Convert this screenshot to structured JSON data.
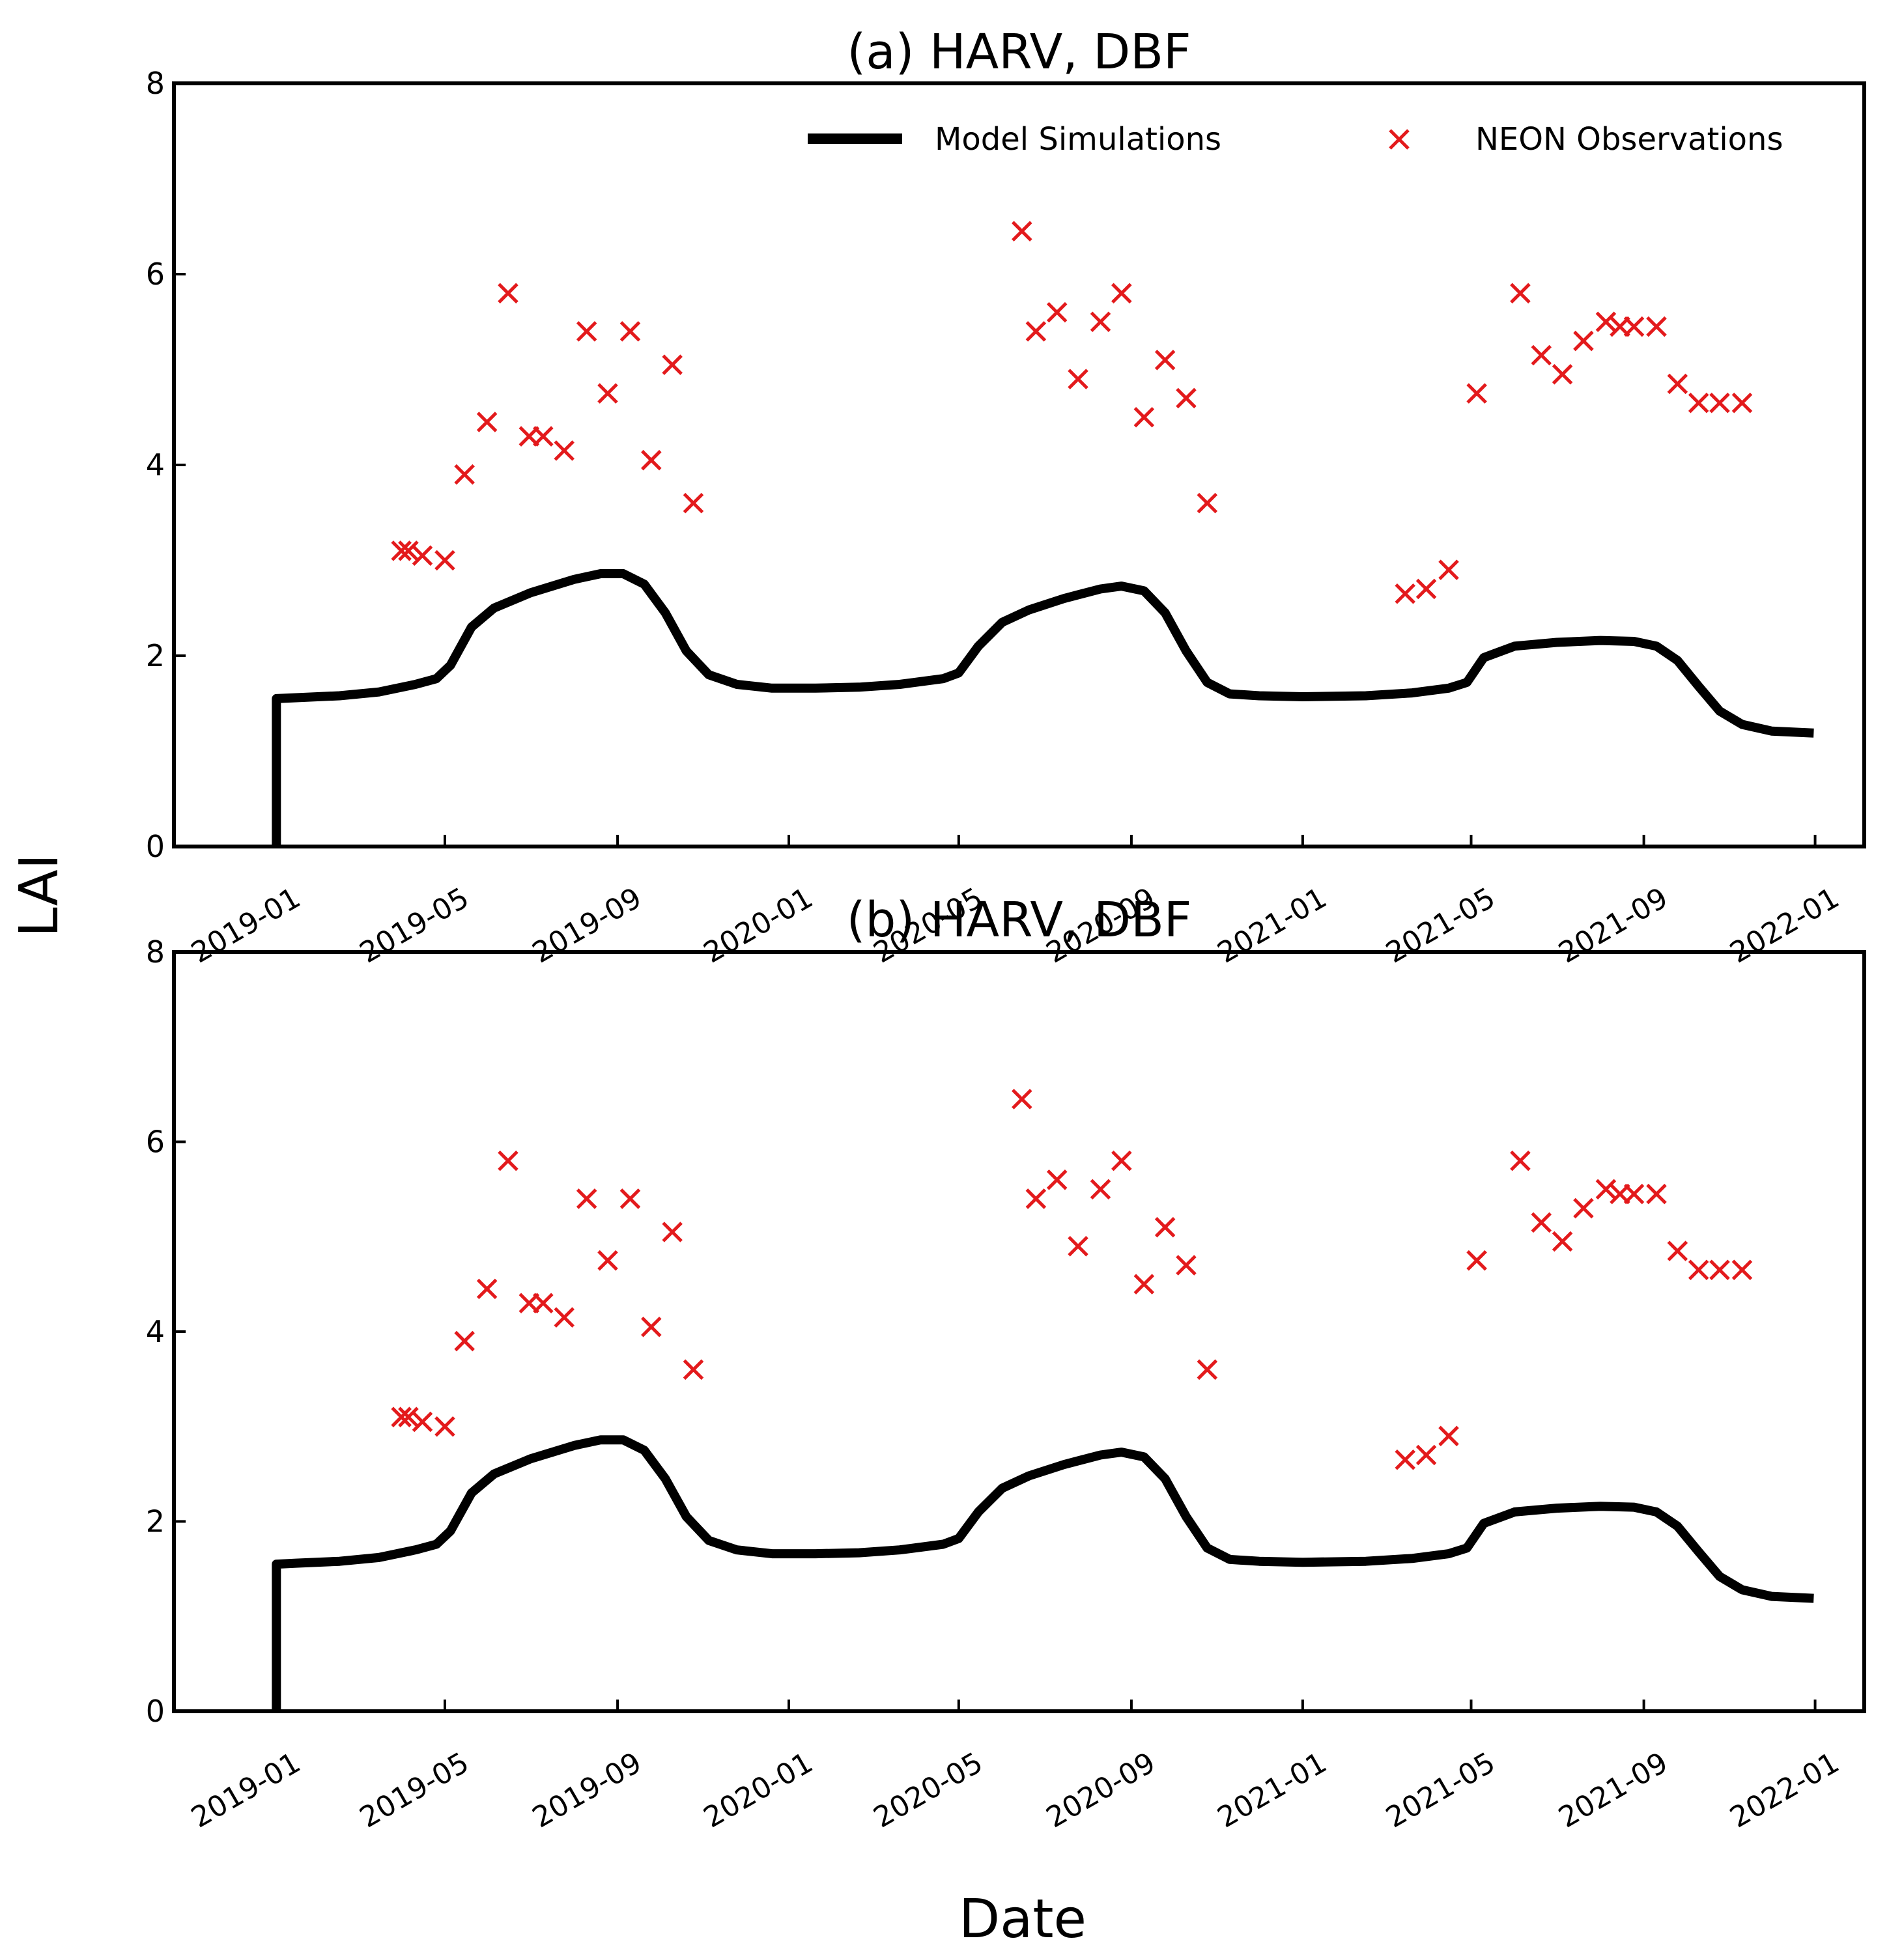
{
  "figure": {
    "ylabel": "LAI",
    "xlabel": "Date"
  },
  "chart_data": [
    {
      "type": "line",
      "title": "(a) HARV, DBF",
      "xlabel": "Date",
      "ylabel": "LAI",
      "ylim": [
        0,
        8
      ],
      "yticks": [
        0,
        2,
        4,
        6,
        8
      ],
      "xlim": [
        "2018-10-20",
        "2022-02-05"
      ],
      "xticks": [
        "2019-01",
        "2019-05",
        "2019-09",
        "2020-01",
        "2020-05",
        "2020-09",
        "2021-01",
        "2021-05",
        "2021-09",
        "2022-01"
      ],
      "grid": false,
      "legend_position": "top-right",
      "series": [
        {
          "name": "Model Simulations",
          "kind": "line",
          "color": "#000000",
          "x": [
            "2019-01-01",
            "2019-01-01",
            "2019-01-15",
            "2019-02-15",
            "2019-03-15",
            "2019-04-10",
            "2019-04-25",
            "2019-05-05",
            "2019-05-20",
            "2019-06-05",
            "2019-07-01",
            "2019-08-01",
            "2019-08-20",
            "2019-09-05",
            "2019-09-20",
            "2019-10-05",
            "2019-10-20",
            "2019-11-05",
            "2019-11-25",
            "2019-12-20",
            "2020-01-20",
            "2020-02-20",
            "2020-03-20",
            "2020-04-20",
            "2020-05-01",
            "2020-05-15",
            "2020-06-01",
            "2020-06-20",
            "2020-07-15",
            "2020-08-10",
            "2020-08-25",
            "2020-09-10",
            "2020-09-25",
            "2020-10-10",
            "2020-10-25",
            "2020-11-10",
            "2020-12-01",
            "2021-01-01",
            "2021-02-15",
            "2021-03-20",
            "2021-04-15",
            "2021-04-28",
            "2021-05-10",
            "2021-06-01",
            "2021-07-01",
            "2021-08-01",
            "2021-08-25",
            "2021-09-10",
            "2021-09-25",
            "2021-10-10",
            "2021-10-25",
            "2021-11-10",
            "2021-12-01",
            "2021-12-31"
          ],
          "y": [
            0.0,
            1.55,
            1.56,
            1.58,
            1.62,
            1.7,
            1.76,
            1.9,
            2.3,
            2.5,
            2.66,
            2.8,
            2.86,
            2.86,
            2.75,
            2.45,
            2.05,
            1.8,
            1.7,
            1.66,
            1.66,
            1.67,
            1.7,
            1.76,
            1.82,
            2.1,
            2.35,
            2.48,
            2.6,
            2.7,
            2.73,
            2.68,
            2.45,
            2.05,
            1.72,
            1.6,
            1.58,
            1.57,
            1.58,
            1.61,
            1.66,
            1.72,
            1.98,
            2.1,
            2.14,
            2.16,
            2.15,
            2.1,
            1.95,
            1.68,
            1.42,
            1.28,
            1.21,
            1.19
          ]
        },
        {
          "name": "NEON Observations",
          "kind": "scatter",
          "marker": "x",
          "color": "#e31a1c",
          "x": [
            "2019-03-31",
            "2019-04-05",
            "2019-04-15",
            "2019-05-01",
            "2019-05-15",
            "2019-05-31",
            "2019-06-15",
            "2019-06-30",
            "2019-07-10",
            "2019-07-25",
            "2019-08-10",
            "2019-08-25",
            "2019-09-10",
            "2019-09-25",
            "2019-10-10",
            "2019-10-25",
            "2020-06-15",
            "2020-06-25",
            "2020-07-10",
            "2020-07-25",
            "2020-08-10",
            "2020-08-25",
            "2020-09-10",
            "2020-09-25",
            "2020-10-10",
            "2020-10-25",
            "2021-03-15",
            "2021-03-30",
            "2021-04-15",
            "2021-05-05",
            "2021-06-05",
            "2021-06-20",
            "2021-07-05",
            "2021-07-20",
            "2021-08-05",
            "2021-08-15",
            "2021-08-25",
            "2021-09-10",
            "2021-09-25",
            "2021-10-10",
            "2021-10-25",
            "2021-11-10"
          ],
          "y": [
            3.1,
            3.1,
            3.05,
            3.0,
            3.9,
            4.45,
            5.8,
            4.3,
            4.3,
            4.15,
            5.4,
            4.75,
            5.4,
            4.05,
            5.05,
            3.6,
            6.45,
            5.4,
            5.6,
            4.9,
            5.5,
            5.8,
            4.5,
            5.1,
            4.7,
            3.6,
            2.65,
            2.7,
            2.9,
            4.75,
            5.8,
            5.15,
            4.95,
            5.3,
            5.5,
            5.45,
            5.45,
            5.45,
            4.85,
            4.65,
            4.65,
            4.65
          ]
        }
      ]
    },
    {
      "type": "line",
      "title": "(b) HARV, DBF",
      "xlabel": "Date",
      "ylabel": "LAI",
      "ylim": [
        0,
        8
      ],
      "yticks": [
        0,
        2,
        4,
        6,
        8
      ],
      "xlim": [
        "2018-10-20",
        "2022-02-05"
      ],
      "xticks": [
        "2019-01",
        "2019-05",
        "2019-09",
        "2020-01",
        "2020-05",
        "2020-09",
        "2021-01",
        "2021-05",
        "2021-09",
        "2022-01"
      ],
      "grid": false,
      "series": [
        {
          "kind": "line",
          "color": "#000000",
          "x": [
            "2019-01-01",
            "2019-01-01",
            "2019-01-15",
            "2019-02-15",
            "2019-03-15",
            "2019-04-10",
            "2019-04-25",
            "2019-05-05",
            "2019-05-20",
            "2019-06-05",
            "2019-07-01",
            "2019-08-01",
            "2019-08-20",
            "2019-09-05",
            "2019-09-20",
            "2019-10-05",
            "2019-10-20",
            "2019-11-05",
            "2019-11-25",
            "2019-12-20",
            "2020-01-20",
            "2020-02-20",
            "2020-03-20",
            "2020-04-20",
            "2020-05-01",
            "2020-05-15",
            "2020-06-01",
            "2020-06-20",
            "2020-07-15",
            "2020-08-10",
            "2020-08-25",
            "2020-09-10",
            "2020-09-25",
            "2020-10-10",
            "2020-10-25",
            "2020-11-10",
            "2020-12-01",
            "2021-01-01",
            "2021-02-15",
            "2021-03-20",
            "2021-04-15",
            "2021-04-28",
            "2021-05-10",
            "2021-06-01",
            "2021-07-01",
            "2021-08-01",
            "2021-08-25",
            "2021-09-10",
            "2021-09-25",
            "2021-10-10",
            "2021-10-25",
            "2021-11-10",
            "2021-12-01",
            "2021-12-31"
          ],
          "y": [
            0.0,
            1.55,
            1.56,
            1.58,
            1.62,
            1.7,
            1.76,
            1.9,
            2.3,
            2.5,
            2.66,
            2.8,
            2.86,
            2.86,
            2.75,
            2.45,
            2.05,
            1.8,
            1.7,
            1.66,
            1.66,
            1.67,
            1.7,
            1.76,
            1.82,
            2.1,
            2.35,
            2.48,
            2.6,
            2.7,
            2.73,
            2.68,
            2.45,
            2.05,
            1.72,
            1.6,
            1.58,
            1.57,
            1.58,
            1.61,
            1.66,
            1.72,
            1.98,
            2.1,
            2.14,
            2.16,
            2.15,
            2.1,
            1.95,
            1.68,
            1.42,
            1.28,
            1.21,
            1.19
          ]
        },
        {
          "kind": "scatter",
          "marker": "x",
          "color": "#e31a1c",
          "x": [
            "2019-03-31",
            "2019-04-05",
            "2019-04-15",
            "2019-05-01",
            "2019-05-15",
            "2019-05-31",
            "2019-06-15",
            "2019-06-30",
            "2019-07-10",
            "2019-07-25",
            "2019-08-10",
            "2019-08-25",
            "2019-09-10",
            "2019-09-25",
            "2019-10-10",
            "2019-10-25",
            "2020-06-15",
            "2020-06-25",
            "2020-07-10",
            "2020-07-25",
            "2020-08-10",
            "2020-08-25",
            "2020-09-10",
            "2020-09-25",
            "2020-10-10",
            "2020-10-25",
            "2021-03-15",
            "2021-03-30",
            "2021-04-15",
            "2021-05-05",
            "2021-06-05",
            "2021-06-20",
            "2021-07-05",
            "2021-07-20",
            "2021-08-05",
            "2021-08-15",
            "2021-08-25",
            "2021-09-10",
            "2021-09-25",
            "2021-10-10",
            "2021-10-25",
            "2021-11-10"
          ],
          "y": [
            3.1,
            3.1,
            3.05,
            3.0,
            3.9,
            4.45,
            5.8,
            4.3,
            4.3,
            4.15,
            5.4,
            4.75,
            5.4,
            4.05,
            5.05,
            3.6,
            6.45,
            5.4,
            5.6,
            4.9,
            5.5,
            5.8,
            4.5,
            5.1,
            4.7,
            3.6,
            2.65,
            2.7,
            2.9,
            4.75,
            5.8,
            5.15,
            4.95,
            5.3,
            5.5,
            5.45,
            5.45,
            5.45,
            4.85,
            4.65,
            4.65,
            4.65
          ]
        }
      ]
    }
  ]
}
